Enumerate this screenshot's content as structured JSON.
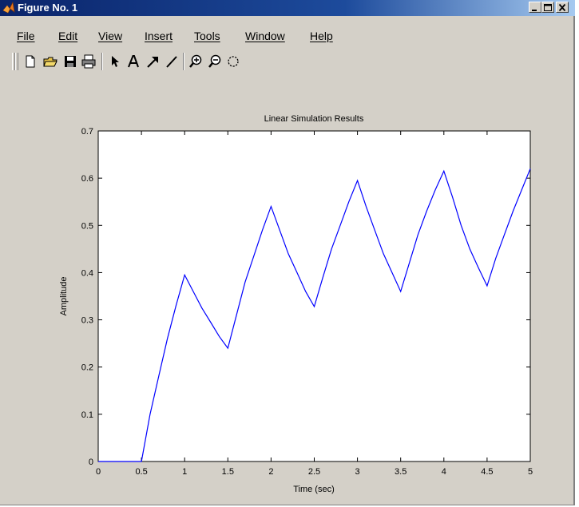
{
  "window": {
    "title": "Figure No. 1",
    "accent_color": "#0a246a",
    "face_color": "#d4d0c8",
    "caption_buttons": [
      "minimize-icon",
      "maximize-icon",
      "close-icon"
    ]
  },
  "menu": {
    "items": [
      "File",
      "Edit",
      "View",
      "Insert",
      "Tools",
      "Window",
      "Help"
    ]
  },
  "toolbar": {
    "buttons": [
      {
        "name": "new-figure-button",
        "icon": "blank-page-icon"
      },
      {
        "name": "open-file-button",
        "icon": "folder-open-icon"
      },
      {
        "name": "save-button",
        "icon": "floppy-disk-icon"
      },
      {
        "name": "print-button",
        "icon": "printer-icon"
      },
      {
        "name": "edit-plot-button",
        "icon": "arrow-pointer-icon"
      },
      {
        "name": "insert-text-button",
        "icon": "letter-a-icon"
      },
      {
        "name": "insert-arrow-button",
        "icon": "diagonal-arrow-icon"
      },
      {
        "name": "insert-line-button",
        "icon": "diagonal-line-icon"
      },
      {
        "name": "zoom-in-button",
        "icon": "zoom-in-icon"
      },
      {
        "name": "zoom-out-button",
        "icon": "zoom-out-icon"
      },
      {
        "name": "rotate-3d-button",
        "icon": "rotate-icon"
      }
    ]
  },
  "chart_data": {
    "type": "line",
    "title": "Linear Simulation Results",
    "xlabel": "Time (sec)",
    "ylabel": "Amplitude",
    "xlim": [
      0,
      5
    ],
    "ylim": [
      0,
      0.7
    ],
    "xticks": [
      "0",
      "0.5",
      "1",
      "1.5",
      "2",
      "2.5",
      "3",
      "3.5",
      "4",
      "4.5",
      "5"
    ],
    "yticks": [
      "0",
      "0.1",
      "0.2",
      "0.3",
      "0.4",
      "0.5",
      "0.6",
      "0.7"
    ],
    "grid": false,
    "line_color": "#0000ff",
    "series": [
      {
        "x": [
          0,
          0.5,
          0.6,
          0.7,
          0.8,
          0.9,
          1.0,
          1.1,
          1.2,
          1.3,
          1.4,
          1.5,
          1.6,
          1.7,
          1.8,
          1.9,
          2.0,
          2.1,
          2.2,
          2.3,
          2.4,
          2.5,
          2.6,
          2.7,
          2.8,
          2.9,
          3.0,
          3.1,
          3.2,
          3.3,
          3.4,
          3.5,
          3.6,
          3.7,
          3.8,
          3.9,
          4.0,
          4.1,
          4.2,
          4.3,
          4.4,
          4.5,
          4.6,
          4.7,
          4.8,
          4.9,
          5.0
        ],
        "y": [
          0,
          0,
          0.1,
          0.18,
          0.26,
          0.33,
          0.395,
          0.36,
          0.325,
          0.295,
          0.265,
          0.24,
          0.31,
          0.38,
          0.435,
          0.49,
          0.54,
          0.49,
          0.44,
          0.4,
          0.36,
          0.328,
          0.39,
          0.45,
          0.5,
          0.55,
          0.595,
          0.54,
          0.49,
          0.44,
          0.4,
          0.36,
          0.42,
          0.48,
          0.53,
          0.575,
          0.615,
          0.56,
          0.5,
          0.45,
          0.41,
          0.372,
          0.43,
          0.48,
          0.53,
          0.575,
          0.62
        ]
      }
    ]
  }
}
